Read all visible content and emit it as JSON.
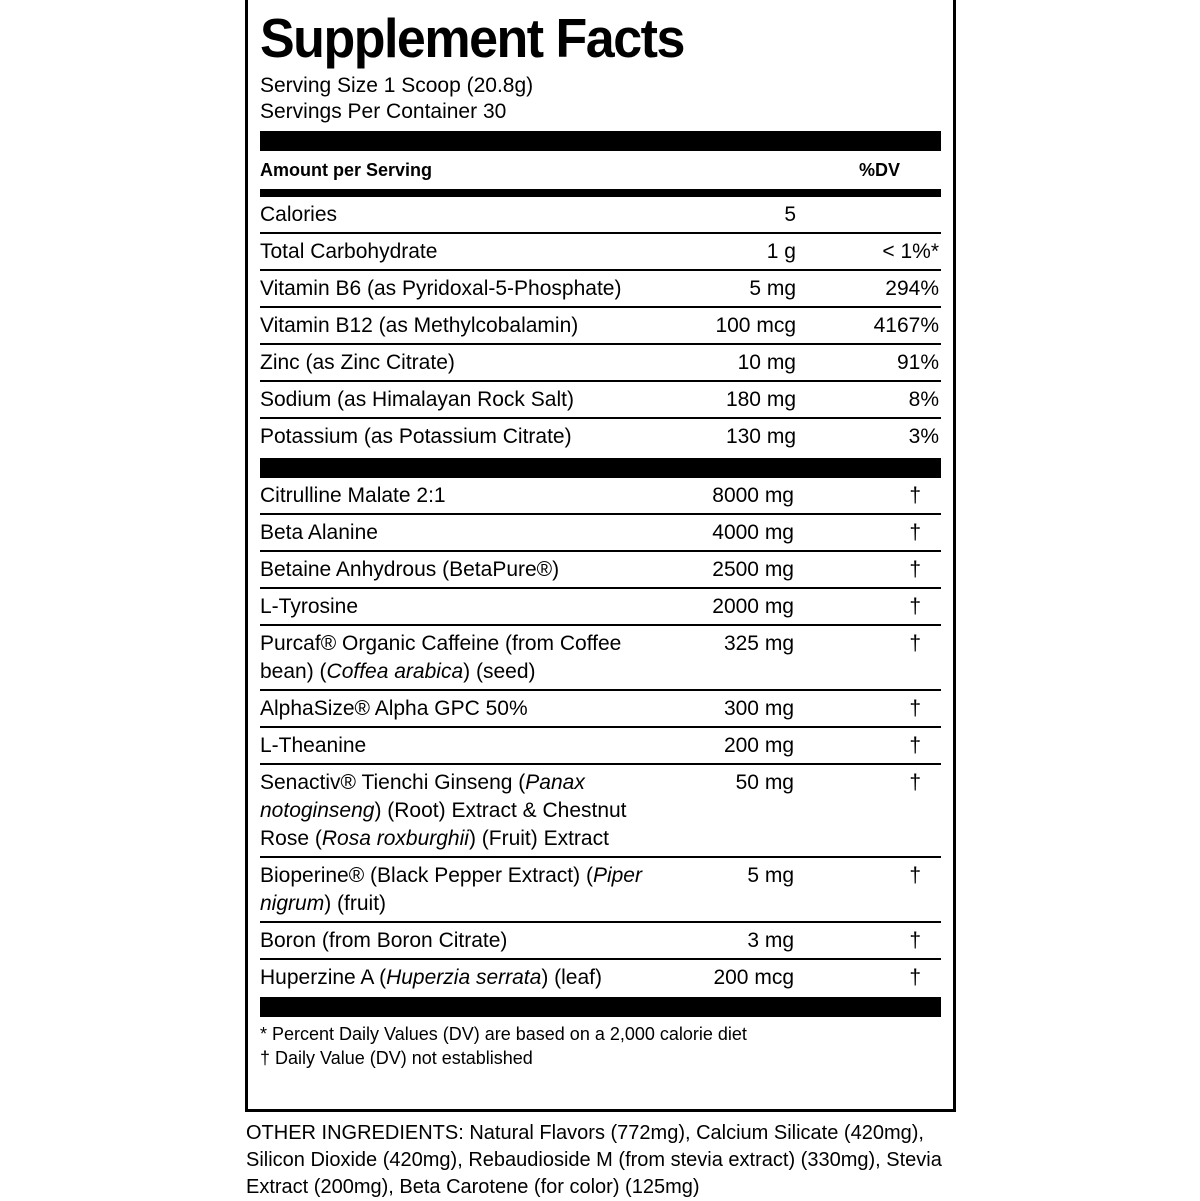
{
  "header": {
    "title": "Supplement Facts",
    "serving_size": "Serving Size 1 Scoop (20.8g)",
    "servings_per_container": "Servings Per Container 30"
  },
  "table": {
    "amount_header": "Amount per Serving",
    "dv_header": "%DV",
    "nutrients": [
      {
        "name": [
          "Calories"
        ],
        "amount": "5"
      },
      {
        "name": [
          "Total Carbohydrate"
        ],
        "amount": "1 g",
        "dv": "< 1%*"
      },
      {
        "name": [
          "Vitamin B6 (as Pyridoxal-5-Phosphate)"
        ],
        "amount": "5 mg",
        "dv": "294%"
      },
      {
        "name": [
          "Vitamin B12 (as Methylcobalamin)"
        ],
        "amount": "100 mcg",
        "dv": "4167%"
      },
      {
        "name": [
          "Zinc (as Zinc Citrate)"
        ],
        "amount": "10 mg",
        "dv": "91%"
      },
      {
        "name": [
          "Sodium (as Himalayan Rock Salt)"
        ],
        "amount": "180 mg",
        "dv": "8%"
      },
      {
        "name": [
          "Potassium (as Potassium Citrate)"
        ],
        "amount": "130 mg",
        "dv": "3%"
      }
    ],
    "ingredients": [
      {
        "name": [
          "Citrulline Malate 2:1"
        ],
        "amount": "8000 mg",
        "dv": "†"
      },
      {
        "name": [
          "Beta Alanine"
        ],
        "amount": "4000 mg",
        "dv": "†"
      },
      {
        "name": [
          "Betaine Anhydrous (BetaPure®)"
        ],
        "amount": "2500 mg",
        "dv": "†"
      },
      {
        "name": [
          "L-Tyrosine"
        ],
        "amount": "2000 mg",
        "dv": "†"
      },
      {
        "name": [
          "Purcaf® Organic Caffeine (from Coffee bean) (",
          {
            "text": "Coffea arabica",
            "italic": true
          },
          ") (seed)"
        ],
        "amount": "325 mg",
        "dv": "†"
      },
      {
        "name": [
          "AlphaSize® Alpha GPC 50%"
        ],
        "amount": "300 mg",
        "dv": "†"
      },
      {
        "name": [
          "L-Theanine"
        ],
        "amount": "200 mg",
        "dv": "†"
      },
      {
        "name": [
          "Senactiv® Tienchi Ginseng (",
          {
            "text": "Panax notoginseng",
            "italic": true
          },
          ") (Root) Extract & Chestnut Rose (",
          {
            "text": "Rosa roxburghii",
            "italic": true
          },
          ") (Fruit) Extract"
        ],
        "amount": "50 mg",
        "dv": "†"
      },
      {
        "name": [
          "Bioperine® (Black Pepper Extract) (",
          {
            "text": "Piper nigrum",
            "italic": true
          },
          ") (fruit)"
        ],
        "amount": "5 mg",
        "dv": "†"
      },
      {
        "name": [
          "Boron (from Boron Citrate)"
        ],
        "amount": "3 mg",
        "dv": "†"
      },
      {
        "name": [
          "Huperzine A (",
          {
            "text": "Huperzia serrata",
            "italic": true
          },
          ") (leaf)"
        ],
        "amount": "200 mcg",
        "dv": "†"
      }
    ]
  },
  "footnotes": [
    "* Percent Daily Values (DV) are based on a 2,000 calorie diet",
    "† Daily Value (DV) not established"
  ],
  "other_ingredients": "OTHER INGREDIENTS: Natural Flavors (772mg), Calcium Silicate (420mg), Silicon Dioxide (420mg), Rebaudioside M (from stevia extract) (330mg), Stevia Extract (200mg), Beta Carotene (for color) (125mg)"
}
